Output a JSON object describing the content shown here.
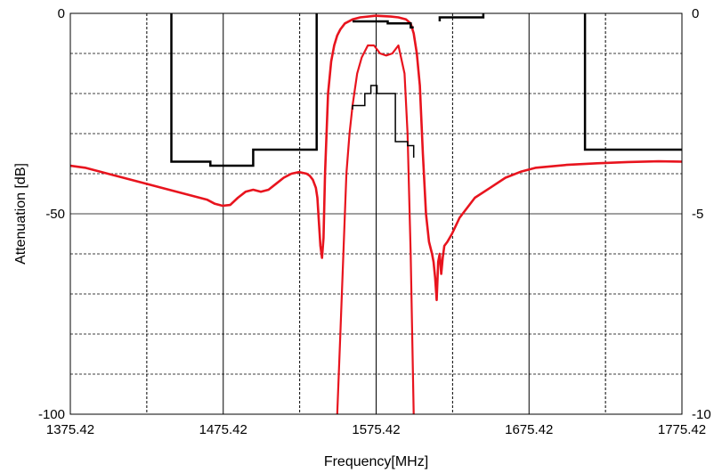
{
  "chart_data": {
    "type": "line",
    "title": "",
    "xlabel": "Frequency[MHz]",
    "ylabel": "Attenuation [dB]",
    "xlim": [
      1375.42,
      1775.42
    ],
    "ylim": [
      -100,
      0
    ],
    "y2lim": [
      -10,
      0
    ],
    "x_ticks": [
      "1375.42",
      "1475.42",
      "1575.42",
      "1675.42",
      "1775.42"
    ],
    "y_ticks": [
      "0",
      "-50",
      "-100"
    ],
    "y2_ticks": [
      "0",
      "-5",
      "-10"
    ],
    "grid": true,
    "legend": "none",
    "colors": {
      "response": "#e8141e",
      "spec_mask": "#000000",
      "grid": "#000000"
    },
    "series": [
      {
        "axis": "left",
        "style": "red-thick",
        "x": [
          1375.42,
          1385,
          1395,
          1405,
          1415,
          1425,
          1435,
          1445,
          1455,
          1465,
          1470,
          1475,
          1480,
          1485,
          1490,
          1495,
          1500,
          1505,
          1510,
          1515,
          1520,
          1525,
          1530,
          1532,
          1534,
          1536,
          1537,
          1538,
          1539,
          1540,
          1541,
          1542,
          1544,
          1546,
          1548,
          1550,
          1552,
          1555,
          1560,
          1565,
          1575,
          1585,
          1590,
          1595,
          1598,
          1600,
          1602,
          1604,
          1606,
          1608,
          1610,
          1612,
          1613,
          1614,
          1615,
          1616,
          1617,
          1618,
          1619,
          1620,
          1622,
          1625,
          1630,
          1640,
          1650,
          1660,
          1670,
          1680,
          1700,
          1720,
          1740,
          1760,
          1775.42
        ],
        "y": [
          -38,
          -38.5,
          -39.5,
          -40.5,
          -41.5,
          -42.5,
          -43.5,
          -44.5,
          -45.5,
          -46.5,
          -47.5,
          -48,
          -47.8,
          -46,
          -44.5,
          -44,
          -44.5,
          -44,
          -42.5,
          -41,
          -40,
          -39.6,
          -40,
          -40.5,
          -41.5,
          -43.5,
          -46,
          -52,
          -58,
          -61,
          -56,
          -40,
          -20,
          -12,
          -8,
          -5.5,
          -4,
          -2.5,
          -1.5,
          -1,
          -0.6,
          -0.8,
          -1,
          -1.5,
          -2.5,
          -5,
          -10,
          -18,
          -35,
          -50,
          -57,
          -60,
          -62,
          -66,
          -71.5,
          -62,
          -60,
          -65,
          -61,
          -58,
          -57,
          -55,
          -51,
          -46,
          -43.5,
          -41,
          -39.5,
          -38.5,
          -37.8,
          -37.4,
          -37.1,
          -36.9,
          -37
        ]
      },
      {
        "axis": "right",
        "style": "red-thin",
        "x": [
          1550,
          1552,
          1554,
          1556,
          1558,
          1560,
          1563,
          1566,
          1570,
          1574,
          1578,
          1582,
          1586,
          1590,
          1594,
          1596,
          1598,
          1600
        ],
        "y": [
          -10,
          -8,
          -6,
          -4,
          -3,
          -2.3,
          -1.5,
          -1.1,
          -0.8,
          -0.8,
          -1,
          -1.05,
          -1,
          -0.8,
          -1.5,
          -3,
          -6,
          -10
        ]
      },
      {
        "axis": "right",
        "style": "black-mask",
        "name": "",
        "segments": [
          {
            "x": [
              1441.5,
              1441.5,
              1467,
              1467,
              1495,
              1495,
              1516.5,
              1516.5,
              1536.5,
              1536.5
            ],
            "y": [
              0,
              -3.7,
              -3.7,
              -3.8,
              -3.8,
              -3.4,
              -3.4,
              -3.4,
              -3.4,
              0
            ]
          },
          {
            "x": [
              1560,
              1583,
              1583,
              1598,
              1598,
              1600,
              1600
            ],
            "y": [
              -0.2,
              -0.2,
              -0.25,
              -0.25,
              -0.35,
              -0.35,
              -0.35
            ]
          },
          {
            "x": [
              1560,
              1560,
              1568,
              1568,
              1572,
              1572,
              1575,
              1575,
              1576,
              1576,
              1580,
              1580,
              1588,
              1588,
              1596,
              1596,
              1600,
              1600
            ],
            "y": [
              -2.4,
              -2.3,
              -2.3,
              -2.0,
              -2.0,
              -1.8,
              -1.8,
              -1.8,
              -1.8,
              -2.0,
              -2.0,
              -2.0,
              -2.0,
              -3.2,
              -3.2,
              -3.3,
              -3.3,
              -3.6
            ]
          },
          {
            "x": [
              1617,
              1617,
              1645.5,
              1645.5
            ],
            "y": [
              -0.2,
              -0.1,
              -0.1,
              0
            ]
          },
          {
            "x": [
              1712,
              1712,
              1775.42
            ],
            "y": [
              0,
              -3.4,
              -3.4
            ]
          }
        ]
      }
    ]
  }
}
